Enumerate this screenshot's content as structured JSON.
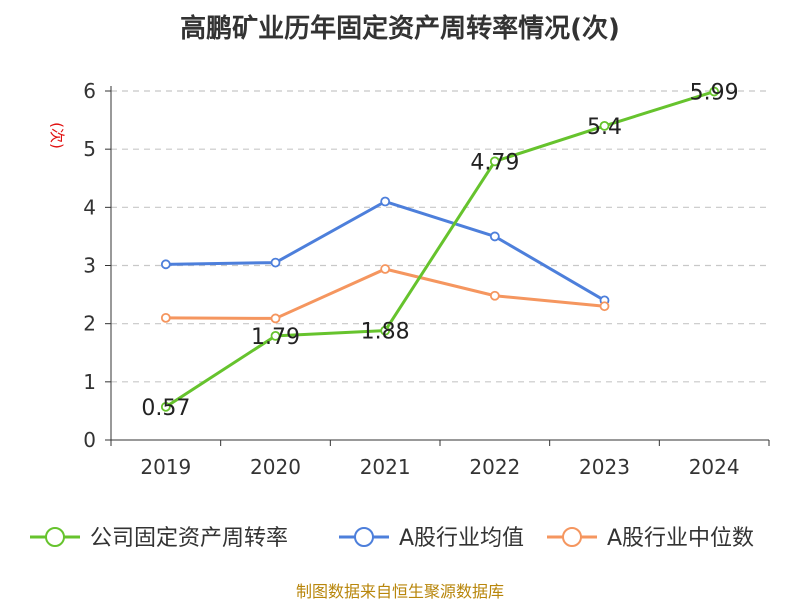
{
  "title": "高鹏矿业历年固定资产周转率情况(次)",
  "source_note": "制图数据来自恒生聚源数据库",
  "colors": {
    "company": "#66c32d",
    "industry_avg": "#4d7fdb",
    "industry_median": "#f5965f",
    "ylabel": "#e01010",
    "grid": "#c8c8c8",
    "axis": "#333333"
  },
  "chart_data": {
    "type": "line",
    "title": "高鹏矿业历年固定资产周转率情况(次)",
    "xlabel": "",
    "ylabel": "(次)",
    "categories": [
      "2019",
      "2020",
      "2021",
      "2022",
      "2023",
      "2024"
    ],
    "ylim": [
      0,
      6
    ],
    "yticks": [
      "0",
      "1",
      "2",
      "3",
      "4",
      "5",
      "6"
    ],
    "grid": true,
    "legend_position": "bottom",
    "series": [
      {
        "name": "公司固定资产周转率",
        "values": [
          0.57,
          1.79,
          1.88,
          4.79,
          5.4,
          5.99
        ],
        "labels": [
          "0.57",
          "1.79",
          "1.88",
          "4.79",
          "5.4",
          "5.99"
        ]
      },
      {
        "name": "A股行业均值",
        "values": [
          3.02,
          3.05,
          4.1,
          3.5,
          2.4,
          null
        ]
      },
      {
        "name": "A股行业中位数",
        "values": [
          2.1,
          2.09,
          2.94,
          2.48,
          2.3,
          null
        ]
      }
    ]
  }
}
